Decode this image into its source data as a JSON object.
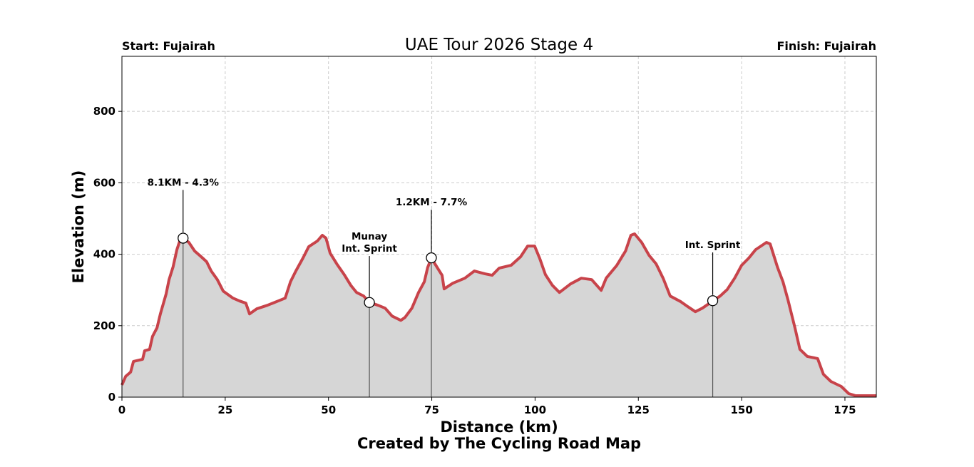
{
  "chart_data": {
    "type": "area",
    "title": "UAE Tour 2026 Stage 4",
    "start_label": "Start: Fujairah",
    "finish_label": "Finish: Fujairah",
    "xlabel": "Distance (km)",
    "ylabel": "Elevation (m)",
    "credit": "Created by The Cycling Road Map",
    "xlim": [
      0,
      182.6
    ],
    "ylim": [
      0,
      954
    ],
    "xticks": [
      0,
      25,
      50,
      75,
      100,
      125,
      150,
      175
    ],
    "yticks": [
      0,
      200,
      400,
      600,
      800
    ],
    "grid": true,
    "line_color": "#c8434a",
    "fill_color": "#d6d6d6",
    "x": [
      0,
      0.9,
      2.1,
      2.8,
      5,
      5.5,
      6.7,
      7.4,
      8.5,
      9.3,
      10.7,
      11.4,
      12.4,
      13.3,
      14,
      14.8,
      16.2,
      17.6,
      19.2,
      20.5,
      21.6,
      23.1,
      24.5,
      25.7,
      26.9,
      28.5,
      30,
      30.9,
      32.6,
      35.2,
      37.8,
      39.5,
      40.8,
      42.1,
      43.8,
      45.2,
      47.3,
      48.5,
      49.4,
      50.4,
      52,
      53.8,
      55.4,
      56.8,
      58.5,
      59.9,
      62,
      63.7,
      65.4,
      67.5,
      68.5,
      70.2,
      71.8,
      73.2,
      74,
      74.9,
      76.3,
      77.5,
      78,
      80.1,
      83,
      85.3,
      87.9,
      89.6,
      91.3,
      94.2,
      96.5,
      98.2,
      99.9,
      101.1,
      102.5,
      104.2,
      105.9,
      108.6,
      111.2,
      113.7,
      116,
      117.2,
      119.8,
      121.9,
      123.2,
      124.1,
      125.8,
      127.6,
      129.3,
      131,
      132.7,
      135.3,
      137,
      138.8,
      140.5,
      143,
      144.8,
      146.5,
      148.3,
      150,
      151.7,
      153.4,
      156,
      156.9,
      158.7,
      160,
      161.2,
      162.9,
      164.1,
      165.9,
      168.4,
      169.8,
      171.6,
      174.1,
      175.9,
      177.6,
      182.6
    ],
    "y": [
      34,
      58,
      70,
      100,
      106,
      130,
      134,
      170,
      194,
      233,
      289,
      329,
      365,
      413,
      437,
      445,
      433,
      409,
      393,
      379,
      353,
      329,
      297,
      287,
      277,
      269,
      263,
      233,
      247,
      257,
      269,
      277,
      323,
      353,
      389,
      421,
      437,
      453,
      445,
      403,
      373,
      343,
      313,
      293,
      283,
      265,
      257,
      249,
      227,
      215,
      223,
      249,
      293,
      323,
      363,
      389,
      363,
      341,
      303,
      319,
      333,
      353,
      345,
      341,
      361,
      369,
      393,
      423,
      423,
      389,
      343,
      313,
      293,
      317,
      333,
      329,
      299,
      333,
      369,
      409,
      453,
      457,
      433,
      397,
      373,
      333,
      283,
      267,
      253,
      239,
      249,
      269,
      283,
      301,
      333,
      369,
      389,
      413,
      433,
      429,
      363,
      323,
      273,
      194,
      134,
      114,
      108,
      64,
      44,
      30,
      10,
      4,
      4
    ],
    "annotations": [
      {
        "x": 14.8,
        "y": 445,
        "label_lines": [
          "8.1KM - 4.3%"
        ],
        "label_y": 600
      },
      {
        "x": 59.9,
        "y": 265,
        "label_lines": [
          "Munay",
          "Int. Sprint"
        ],
        "label_y": 415
      },
      {
        "x": 74.9,
        "y": 390,
        "label_lines": [
          "1.2KM - 7.7%"
        ],
        "label_y": 545
      },
      {
        "x": 143,
        "y": 270,
        "label_lines": [
          "Int. Sprint"
        ],
        "label_y": 425
      }
    ]
  }
}
